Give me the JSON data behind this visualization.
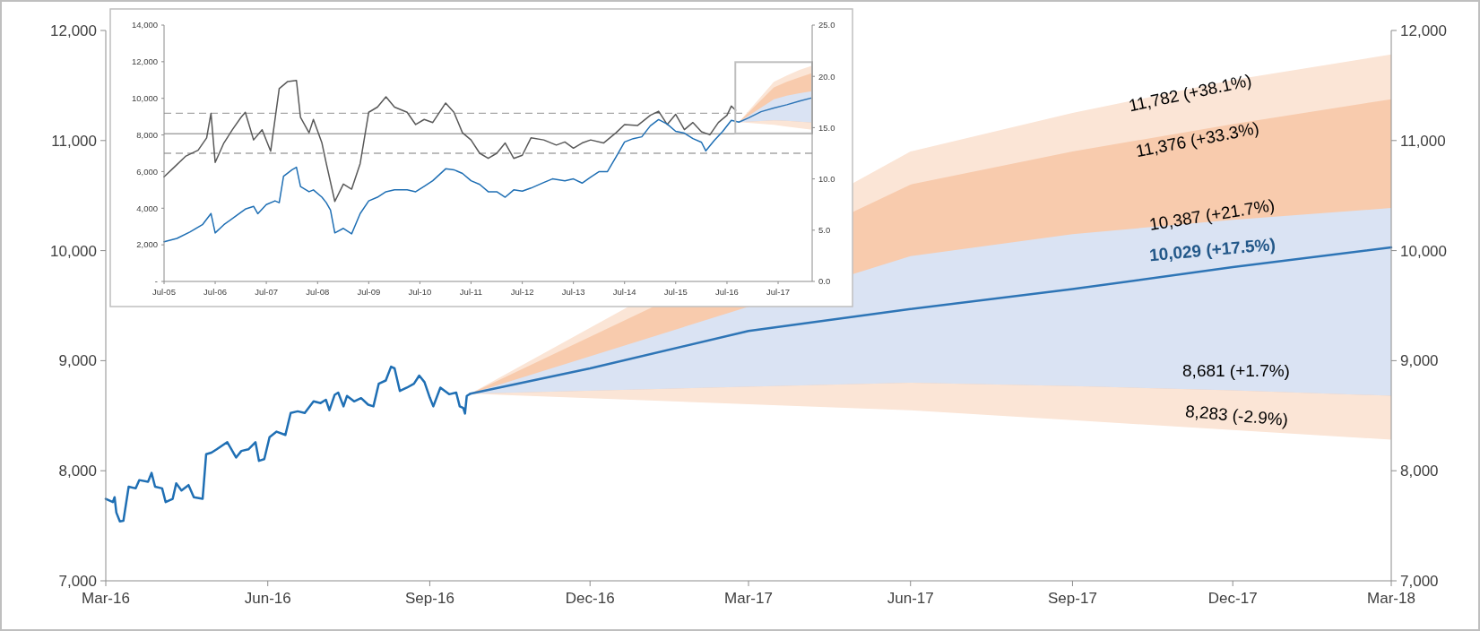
{
  "chart_data": [
    {
      "type": "line",
      "xlim": [
        "2016-03-01",
        "2018-03-01"
      ],
      "xticks": [
        {
          "value": "2016-03-01",
          "label": "Mar-16"
        },
        {
          "value": "2016-06-01",
          "label": "Jun-16"
        },
        {
          "value": "2016-09-01",
          "label": "Sep-16"
        },
        {
          "value": "2016-12-01",
          "label": "Dec-16"
        },
        {
          "value": "2017-03-01",
          "label": "Mar-17"
        },
        {
          "value": "2017-06-01",
          "label": "Jun-17"
        },
        {
          "value": "2017-09-01",
          "label": "Sep-17"
        },
        {
          "value": "2017-12-01",
          "label": "Dec-17"
        },
        {
          "value": "2018-03-01",
          "label": "Mar-18"
        }
      ],
      "ylim": [
        7000,
        12000
      ],
      "yticks": [
        {
          "value": 7000,
          "label": "7,000"
        },
        {
          "value": 8000,
          "label": "8,000"
        },
        {
          "value": 9000,
          "label": "9,000"
        },
        {
          "value": 10000,
          "label": "10,000"
        },
        {
          "value": 11000,
          "label": "11,000"
        },
        {
          "value": 12000,
          "label": "12,000"
        }
      ],
      "y2lim": [
        7000,
        12000
      ],
      "y2ticks": [
        {
          "value": 7000,
          "label": "7,000"
        },
        {
          "value": 8000,
          "label": "8,000"
        },
        {
          "value": 9000,
          "label": "9,000"
        },
        {
          "value": 10000,
          "label": "10,000"
        },
        {
          "value": 11000,
          "label": "11,000"
        },
        {
          "value": 12000,
          "label": "12,000"
        }
      ],
      "series": [
        {
          "color": "#fbe5d6",
          "x": [
            "2016-09-24",
            "2017-06-01",
            "2017-09-01",
            "2017-12-01",
            "2018-03-01"
          ],
          "values": [
            null,
            null,
            null,
            null,
            null
          ],
          "lower": [
            8700,
            8550,
            8460,
            8370,
            8283
          ],
          "upper": [
            8700,
            10900,
            11250,
            11550,
            11782
          ]
        },
        {
          "color": "#f8cbad",
          "x": [
            "2016-09-24",
            "2017-06-01",
            "2017-09-01",
            "2017-12-01",
            "2018-03-01"
          ],
          "values": [
            null,
            null,
            null,
            null,
            null
          ],
          "lower": [
            8700,
            8800,
            8770,
            8730,
            8681
          ],
          "upper": [
            8700,
            10600,
            10900,
            11150,
            11376
          ]
        },
        {
          "color": "#dae3f3",
          "x": [
            "2016-09-24",
            "2017-06-01",
            "2017-09-01",
            "2017-12-01",
            "2018-03-01"
          ],
          "values": [
            null,
            null,
            null,
            null,
            null
          ],
          "lower": [
            8700,
            8800,
            8770,
            8730,
            8681
          ],
          "upper": [
            8700,
            9950,
            10150,
            10280,
            10387
          ]
        },
        {
          "color": "#1f6fb4",
          "x": [
            "2016-03-01",
            "2016-03-05",
            "2016-03-06",
            "2016-03-07",
            "2016-03-09",
            "2016-03-11",
            "2016-03-14",
            "2016-03-18",
            "2016-03-20",
            "2016-03-25",
            "2016-03-27",
            "2016-03-29",
            "2016-04-02",
            "2016-04-04",
            "2016-04-08",
            "2016-04-10",
            "2016-04-13",
            "2016-04-17",
            "2016-04-20",
            "2016-04-25",
            "2016-04-27",
            "2016-04-30",
            "2016-05-03",
            "2016-05-09",
            "2016-05-14",
            "2016-05-17",
            "2016-05-21",
            "2016-05-25",
            "2016-05-27",
            "2016-05-30",
            "2016-06-02",
            "2016-06-06",
            "2016-06-11",
            "2016-06-14",
            "2016-06-18",
            "2016-06-22",
            "2016-06-27",
            "2016-07-01",
            "2016-07-04",
            "2016-07-06",
            "2016-07-09",
            "2016-07-11",
            "2016-07-14",
            "2016-07-16",
            "2016-07-20",
            "2016-07-24",
            "2016-07-28",
            "2016-07-31",
            "2016-08-03",
            "2016-08-07",
            "2016-08-10",
            "2016-08-12",
            "2016-08-15",
            "2016-08-19",
            "2016-08-23",
            "2016-08-26",
            "2016-08-29",
            "2016-09-01",
            "2016-09-03",
            "2016-09-07",
            "2016-09-12",
            "2016-09-16",
            "2016-09-18",
            "2016-09-20",
            "2016-09-21",
            "2016-09-22",
            "2016-09-24"
          ],
          "values": [
            7745,
            7715,
            7760,
            7620,
            7540,
            7545,
            7855,
            7840,
            7915,
            7900,
            7980,
            7855,
            7840,
            7715,
            7745,
            7885,
            7820,
            7870,
            7760,
            7745,
            8150,
            8165,
            8195,
            8260,
            8120,
            8180,
            8195,
            8260,
            8090,
            8105,
            8305,
            8355,
            8325,
            8525,
            8540,
            8525,
            8630,
            8615,
            8645,
            8550,
            8690,
            8710,
            8585,
            8680,
            8630,
            8660,
            8600,
            8585,
            8790,
            8820,
            8945,
            8930,
            8725,
            8755,
            8790,
            8865,
            8805,
            8665,
            8585,
            8755,
            8695,
            8710,
            8585,
            8570,
            8520,
            8680,
            8700
          ]
        },
        {
          "color": "#2e75b6",
          "x": [
            "2016-09-24",
            "2016-12-01",
            "2017-03-01",
            "2017-06-01",
            "2017-09-01",
            "2017-12-01",
            "2018-03-01"
          ],
          "values": [
            8700,
            8930,
            9270,
            9470,
            9650,
            9850,
            10029
          ]
        }
      ],
      "annotations": [
        "11,782 (+38.1%)",
        "11,376 (+33.3%)",
        "10,387 (+21.7%)",
        "10,029 (+17.5%)",
        "8,681 (+1.7%)",
        "8,283 (-2.9%)"
      ]
    },
    {
      "type": "line",
      "xlim": [
        "2005-07-01",
        "2018-03-01"
      ],
      "xticks": [
        {
          "value": "2005-07-01",
          "label": "Jul-05"
        },
        {
          "value": "2006-07-01",
          "label": "Jul-06"
        },
        {
          "value": "2007-07-01",
          "label": "Jul-07"
        },
        {
          "value": "2008-07-01",
          "label": "Jul-08"
        },
        {
          "value": "2009-07-01",
          "label": "Jul-09"
        },
        {
          "value": "2010-07-01",
          "label": "Jul-10"
        },
        {
          "value": "2011-07-01",
          "label": "Jul-11"
        },
        {
          "value": "2012-07-01",
          "label": "Jul-12"
        },
        {
          "value": "2013-07-01",
          "label": "Jul-13"
        },
        {
          "value": "2014-07-01",
          "label": "Jul-14"
        },
        {
          "value": "2015-07-01",
          "label": "Jul-15"
        },
        {
          "value": "2016-07-01",
          "label": "Jul-16"
        },
        {
          "value": "2017-07-01",
          "label": "Jul-17"
        }
      ],
      "ylim": [
        0,
        14000
      ],
      "yticks": [
        {
          "value": 0,
          "label": "-"
        },
        {
          "value": 2000,
          "label": "2,000"
        },
        {
          "value": 4000,
          "label": "4,000"
        },
        {
          "value": 6000,
          "label": "6,000"
        },
        {
          "value": 8000,
          "label": "8,000"
        },
        {
          "value": 10000,
          "label": "10,000"
        },
        {
          "value": 12000,
          "label": "12,000"
        },
        {
          "value": 14000,
          "label": "14,000"
        }
      ],
      "y2lim": [
        0,
        25
      ],
      "y2ticks": [
        {
          "value": 0,
          "label": "0.0"
        },
        {
          "value": 5,
          "label": "5.0"
        },
        {
          "value": 10,
          "label": "10.0"
        },
        {
          "value": 15,
          "label": "15.0"
        },
        {
          "value": 20,
          "label": "20.0"
        },
        {
          "value": 25,
          "label": "25.0"
        }
      ],
      "ref_lines": [
        {
          "axis": "y2",
          "value": 16.4,
          "label": null,
          "color": "#a6a6a6",
          "line_style": "dashed"
        },
        {
          "axis": "y2",
          "value": 14.4,
          "label": null,
          "color": "#a6a6a6",
          "line_style": "solid"
        },
        {
          "axis": "y2",
          "value": 12.5,
          "label": null,
          "color": "#a6a6a6",
          "line_style": "dashed"
        }
      ],
      "series": [
        {
          "color": "#fbe5d6",
          "x": [
            "2016-09-24",
            "2017-06-01",
            "2017-09-01",
            "2017-12-01",
            "2018-03-01"
          ],
          "values": [
            null,
            null,
            null,
            null,
            null
          ],
          "lower": [
            8700,
            8550,
            8460,
            8370,
            8283
          ],
          "upper": [
            8700,
            10900,
            11250,
            11550,
            11782
          ]
        },
        {
          "color": "#f8cbad",
          "x": [
            "2016-09-24",
            "2017-06-01",
            "2017-09-01",
            "2017-12-01",
            "2018-03-01"
          ],
          "values": [
            null,
            null,
            null,
            null,
            null
          ],
          "lower": [
            8700,
            8800,
            8770,
            8730,
            8681
          ],
          "upper": [
            8700,
            10600,
            10900,
            11150,
            11376
          ]
        },
        {
          "color": "#dae3f3",
          "x": [
            "2016-09-24",
            "2017-06-01",
            "2017-09-01",
            "2017-12-01",
            "2018-03-01"
          ],
          "values": [
            null,
            null,
            null,
            null,
            null
          ],
          "lower": [
            8700,
            8800,
            8770,
            8730,
            8681
          ],
          "upper": [
            8700,
            9950,
            10150,
            10280,
            10387
          ]
        },
        {
          "color": "#595959",
          "axis": "y2",
          "x": [
            "2005-07",
            "2005-09",
            "2005-12",
            "2006-03",
            "2006-05",
            "2006-06",
            "2006-07",
            "2006-09",
            "2006-11",
            "2007-01",
            "2007-02",
            "2007-04",
            "2007-06",
            "2007-08",
            "2007-10",
            "2007-12",
            "2008-02",
            "2008-03",
            "2008-05",
            "2008-06",
            "2008-08",
            "2008-09",
            "2008-11",
            "2009-01",
            "2009-03",
            "2009-05",
            "2009-07",
            "2009-09",
            "2009-11",
            "2010-01",
            "2010-04",
            "2010-06",
            "2010-08",
            "2010-10",
            "2011-01",
            "2011-03",
            "2011-05",
            "2011-07",
            "2011-09",
            "2011-11",
            "2012-01",
            "2012-03",
            "2012-05",
            "2012-07",
            "2012-09",
            "2012-12",
            "2013-03",
            "2013-05",
            "2013-07",
            "2013-09",
            "2013-11",
            "2014-02",
            "2014-05",
            "2014-07",
            "2014-10",
            "2015-01",
            "2015-03",
            "2015-05",
            "2015-07",
            "2015-09",
            "2015-11",
            "2016-01",
            "2016-03",
            "2016-05",
            "2016-07",
            "2016-08",
            "2016-09"
          ],
          "values": [
            10.2,
            11.0,
            12.2,
            12.8,
            14.0,
            16.4,
            11.6,
            13.5,
            14.8,
            16.0,
            16.5,
            13.8,
            14.8,
            12.7,
            18.8,
            19.5,
            19.6,
            16.0,
            14.5,
            15.8,
            13.5,
            11.5,
            7.8,
            9.5,
            9.0,
            11.5,
            16.5,
            17.0,
            18.0,
            17.0,
            16.5,
            15.3,
            15.8,
            15.5,
            17.4,
            16.5,
            14.5,
            13.8,
            12.5,
            12.0,
            12.5,
            13.5,
            12.0,
            12.3,
            14.0,
            13.8,
            13.3,
            13.6,
            13.0,
            13.5,
            13.8,
            13.5,
            14.5,
            15.3,
            15.2,
            16.2,
            16.6,
            15.3,
            16.3,
            14.8,
            15.5,
            14.6,
            14.3,
            15.5,
            16.2,
            17.1,
            16.7
          ]
        },
        {
          "color": "#1f6fb4",
          "x": [
            "2005-07",
            "2005-10",
            "2006-01",
            "2006-04",
            "2006-06",
            "2006-07",
            "2006-09",
            "2006-12",
            "2007-02",
            "2007-04",
            "2007-05",
            "2007-07",
            "2007-09",
            "2007-10",
            "2007-11",
            "2008-01",
            "2008-02",
            "2008-03",
            "2008-05",
            "2008-06",
            "2008-08",
            "2008-09",
            "2008-10",
            "2008-11",
            "2009-01",
            "2009-03",
            "2009-05",
            "2009-07",
            "2009-09",
            "2009-11",
            "2010-01",
            "2010-04",
            "2010-06",
            "2010-08",
            "2010-10",
            "2011-01",
            "2011-03",
            "2011-05",
            "2011-07",
            "2011-09",
            "2011-11",
            "2012-01",
            "2012-03",
            "2012-05",
            "2012-07",
            "2012-09",
            "2012-12",
            "2013-02",
            "2013-05",
            "2013-07",
            "2013-09",
            "2013-11",
            "2014-01",
            "2014-03",
            "2014-05",
            "2014-07",
            "2014-09",
            "2014-11",
            "2015-01",
            "2015-03",
            "2015-05",
            "2015-07",
            "2015-09",
            "2015-11",
            "2016-01",
            "2016-02",
            "2016-04",
            "2016-06",
            "2016-08",
            "2016-09-24"
          ],
          "values": [
            2170,
            2350,
            2700,
            3100,
            3710,
            2650,
            3100,
            3600,
            3950,
            4100,
            3700,
            4200,
            4400,
            4300,
            5750,
            6100,
            6235,
            5180,
            4900,
            5000,
            4600,
            4300,
            3900,
            2650,
            2900,
            2600,
            3710,
            4400,
            4600,
            4900,
            5000,
            5000,
            4900,
            5200,
            5500,
            6150,
            6100,
            5900,
            5500,
            5300,
            4900,
            4900,
            4600,
            5000,
            4930,
            5100,
            5400,
            5600,
            5500,
            5600,
            5370,
            5700,
            6000,
            6000,
            6800,
            7620,
            7800,
            7900,
            8500,
            8840,
            8600,
            8200,
            8100,
            7800,
            7600,
            7130,
            7700,
            8200,
            8800,
            8700
          ]
        },
        {
          "color": "#2e75b6",
          "x": [
            "2016-09-24",
            "2016-12-01",
            "2017-03-01",
            "2017-06-01",
            "2017-09-01",
            "2017-12-01",
            "2018-03-01"
          ],
          "values": [
            8700,
            8930,
            9270,
            9470,
            9650,
            9850,
            10029
          ]
        }
      ]
    }
  ]
}
